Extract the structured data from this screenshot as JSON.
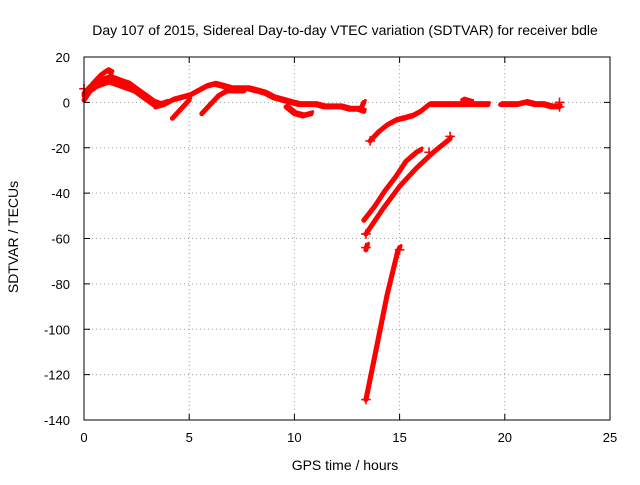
{
  "chart_data": {
    "type": "scatter",
    "title": "Day 107 of 2015, Sidereal Day-to-day VTEC variation (SDTVAR) for receiver bdle",
    "xlabel": "GPS time / hours",
    "ylabel": "SDTVAR / TECUs",
    "xlim": [
      0,
      25
    ],
    "ylim": [
      -140,
      20
    ],
    "x_ticks": [
      0,
      5,
      10,
      15,
      20,
      25
    ],
    "y_ticks": [
      -140,
      -120,
      -100,
      -80,
      -60,
      -40,
      -20,
      0,
      20
    ],
    "x_tick_labels": [
      "0",
      "5",
      "10",
      "15",
      "20",
      "25"
    ],
    "y_tick_labels": [
      "-140",
      "-120",
      "-100",
      "-80",
      "-60",
      "-40",
      "-20",
      "0",
      "20"
    ],
    "grid": true,
    "legend": "none",
    "color": "#ff0000",
    "series": [
      {
        "x": [
          0,
          0.3,
          0.6,
          0.9,
          1.2,
          1.5,
          1.8,
          2.1,
          2.4,
          2.7,
          3.0,
          3.3,
          3.6,
          3.9
        ],
        "y": [
          4,
          7,
          9,
          10,
          11,
          10,
          9,
          8,
          6,
          4,
          2,
          0,
          -1,
          0
        ]
      },
      {
        "x": [
          0,
          0.3,
          0.6,
          0.9,
          1.2,
          1.5,
          1.8,
          2.1,
          2.4,
          2.7,
          3.0,
          3.3
        ],
        "y": [
          1,
          5,
          7,
          8,
          9,
          8,
          7,
          6,
          5,
          3,
          1,
          -1
        ]
      },
      {
        "x": [
          0,
          0.4,
          0.8,
          1.1,
          1.3
        ],
        "y": [
          3,
          8,
          12,
          14,
          13
        ]
      },
      {
        "x": [
          3.4,
          3.8,
          4.2,
          4.6,
          5.0,
          5.4,
          5.8,
          6.2,
          6.6,
          7.0,
          7.4,
          7.8,
          8.2,
          8.6,
          9.0,
          9.4,
          9.8,
          10.2,
          10.6,
          11.0,
          11.4,
          11.8,
          12.2,
          12.6,
          13.0,
          13.3
        ],
        "y": [
          -2,
          -1,
          1,
          2,
          3,
          5,
          7,
          8,
          7,
          6,
          6,
          6,
          5,
          4,
          2,
          1,
          0,
          -1,
          -1,
          -1,
          -2,
          -2,
          -2,
          -3,
          -3,
          -4
        ]
      },
      {
        "x": [
          4.2,
          4.6,
          5.0
        ],
        "y": [
          -7,
          -3,
          1
        ]
      },
      {
        "x": [
          5.6,
          6.0,
          6.4,
          6.8,
          7.2,
          7.6
        ],
        "y": [
          -5,
          -1,
          3,
          5,
          5,
          5
        ]
      },
      {
        "x": [
          9.6,
          10.0,
          10.4,
          10.8
        ],
        "y": [
          -2,
          -5,
          -6,
          -5
        ]
      },
      {
        "x": [
          13.2,
          13.3
        ],
        "y": [
          -2,
          0
        ]
      },
      {
        "x": [
          13.6,
          14.0,
          14.4,
          14.8,
          15.2,
          15.6,
          16.0,
          16.4,
          16.8,
          17.2,
          17.6,
          18.0,
          18.4,
          18.8,
          19.2
        ],
        "y": [
          -17,
          -13,
          -10,
          -8,
          -7,
          -6,
          -4,
          -1,
          -1,
          -1,
          -1,
          -1,
          -1,
          -1,
          -1
        ]
      },
      {
        "x": [
          18.0,
          18.4
        ],
        "y": [
          1,
          0
        ]
      },
      {
        "x": [
          19.8,
          20.2,
          20.6,
          21.0,
          21.4,
          21.8,
          22.2,
          22.6
        ],
        "y": [
          -1,
          -1,
          -1,
          0,
          -1,
          -1,
          -2,
          -2
        ]
      },
      {
        "x": [
          13.3,
          13.8,
          14.3,
          14.8,
          15.3,
          15.8,
          16.0
        ],
        "y": [
          -52,
          -46,
          -39,
          -33,
          -26,
          -22,
          -21
        ]
      },
      {
        "x": [
          13.4,
          14.2,
          15.0,
          15.8,
          16.6,
          17.4
        ],
        "y": [
          -58,
          -47,
          -37,
          -29,
          -22,
          -16
        ]
      },
      {
        "x": [
          13.4,
          13.9,
          14.4,
          14.9,
          15.0
        ],
        "y": [
          -131,
          -108,
          -85,
          -66,
          -64
        ]
      },
      {
        "x": [
          13.4,
          13.45
        ],
        "y": [
          -65,
          -63
        ]
      }
    ],
    "markers": [
      {
        "x": 0,
        "y": 6
      },
      {
        "x": 13.4,
        "y": -131
      },
      {
        "x": 13.4,
        "y": -64
      },
      {
        "x": 13.4,
        "y": -58
      },
      {
        "x": 13.6,
        "y": -17
      },
      {
        "x": 15.0,
        "y": -65
      },
      {
        "x": 16.4,
        "y": -22
      },
      {
        "x": 17.4,
        "y": -15
      },
      {
        "x": 22.6,
        "y": 0
      },
      {
        "x": 22.6,
        "y": -2
      }
    ]
  }
}
